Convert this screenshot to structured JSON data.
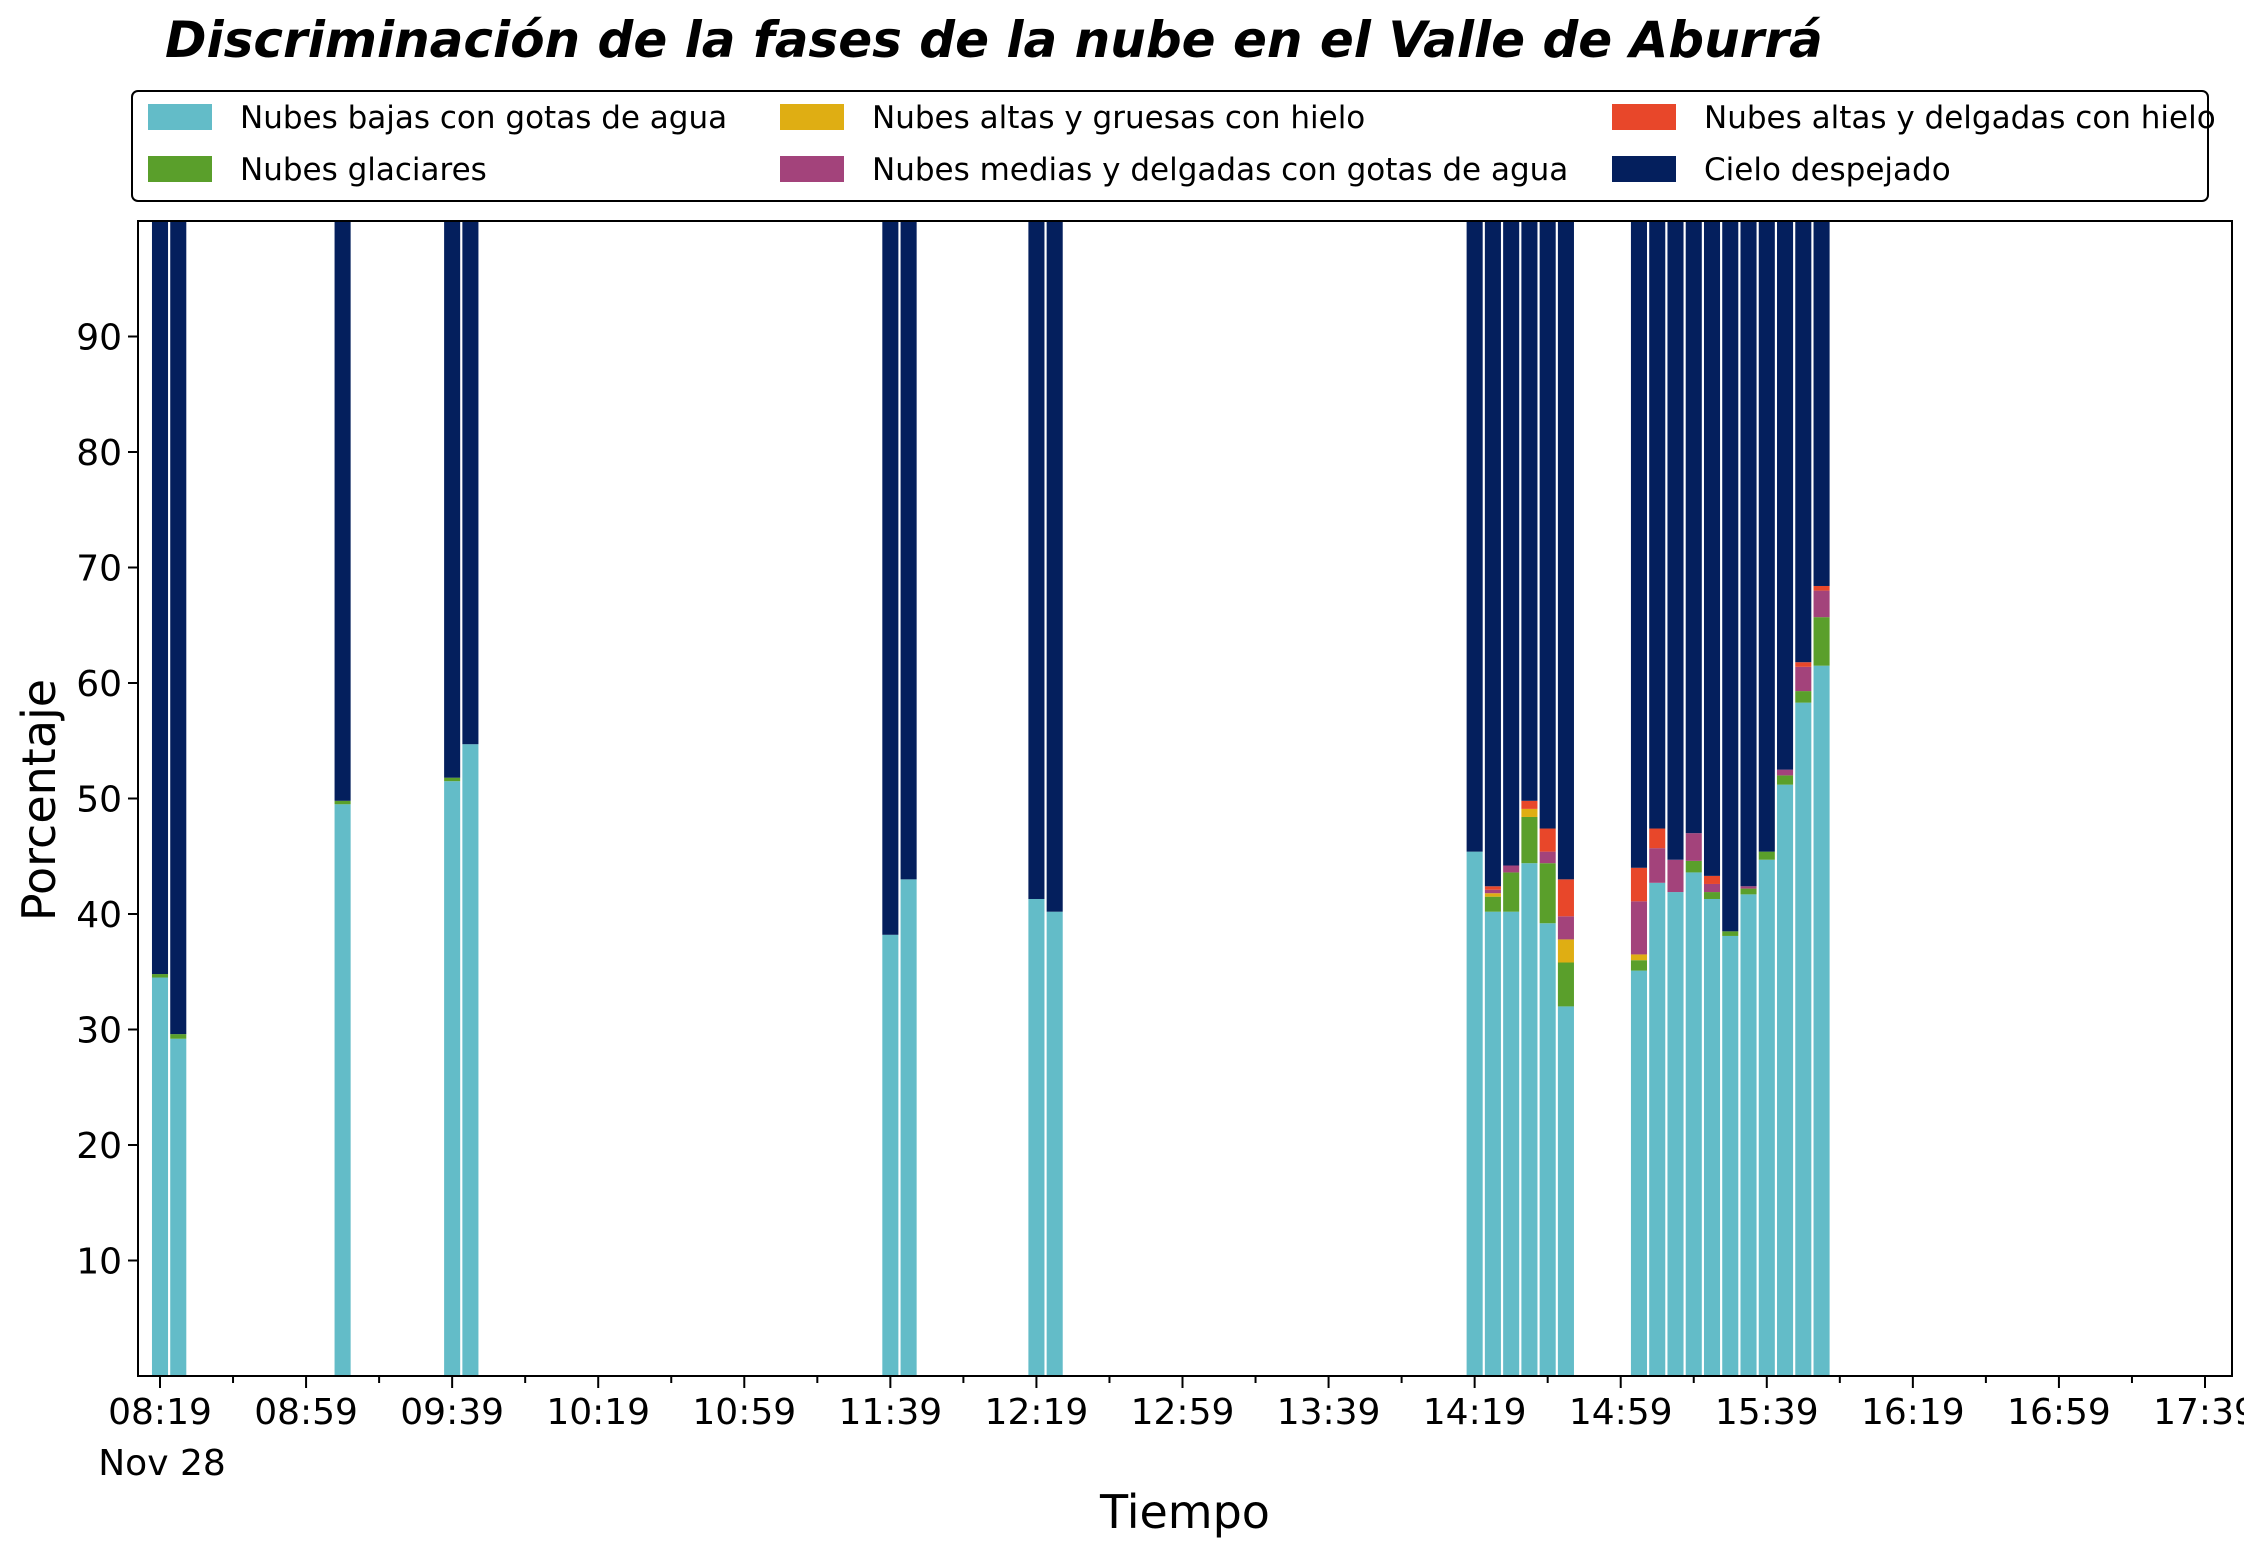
{
  "chart_data": {
    "type": "bar",
    "stacked": true,
    "title": "Discriminación de la fases de la nube en el Valle de Aburrá",
    "xlabel": "Tiempo",
    "ylabel": "Porcentaje",
    "ylim": [
      0,
      100
    ],
    "yticks": [
      10,
      20,
      30,
      40,
      50,
      60,
      70,
      80,
      90
    ],
    "x_major_ticks": [
      "08:19",
      "08:59",
      "09:39",
      "10:19",
      "10:59",
      "11:39",
      "12:19",
      "12:59",
      "13:39",
      "14:19",
      "14:59",
      "15:39",
      "16:19",
      "16:59",
      "17:39"
    ],
    "x_date_label": "Nov 28",
    "grid": false,
    "legend": {
      "placement": "top",
      "columns": 3
    },
    "x": [
      "08:19",
      "08:24",
      "08:44",
      "08:49",
      "08:54",
      "08:59",
      "09:04",
      "09:09",
      "09:14",
      "09:19",
      "09:24",
      "09:29",
      "09:34",
      "09:39",
      "09:44",
      "09:49",
      "09:54",
      "09:59",
      "10:04",
      "10:09",
      "10:14",
      "10:19",
      "10:24",
      "10:29",
      "10:34",
      "10:39",
      "10:44",
      "10:49",
      "10:54",
      "10:59",
      "11:04",
      "11:09",
      "11:14",
      "11:19",
      "11:24",
      "11:29",
      "11:34",
      "11:39",
      "11:44",
      "11:49",
      "11:54",
      "11:59",
      "12:04",
      "12:09",
      "12:14",
      "12:19",
      "12:24",
      "12:29",
      "12:34",
      "12:39",
      "12:44",
      "12:49",
      "12:54",
      "12:59",
      "13:04",
      "13:09",
      "13:14",
      "13:19",
      "13:24",
      "13:29",
      "13:34",
      "13:39",
      "13:44",
      "13:49",
      "13:54",
      "13:59",
      "14:04",
      "14:09",
      "14:14",
      "14:19",
      "14:24",
      "14:29",
      "14:34",
      "14:39",
      "14:44",
      "14:49",
      "14:54",
      "14:59",
      "15:04",
      "15:09",
      "15:14",
      "15:19",
      "15:24",
      "15:29",
      "15:34",
      "15:39",
      "15:44",
      "15:49",
      "15:54",
      "15:59",
      "16:04",
      "16:09",
      "16:14",
      "16:19",
      "16:24",
      "16:29",
      "16:34",
      "16:39",
      "16:44",
      "16:49",
      "16:54",
      "16:59",
      "17:04",
      "17:09",
      "17:14",
      "17:19",
      "17:24",
      "17:29",
      "17:34",
      "17:39"
    ],
    "bars": [
      {
        "t": "08:19",
        "v": [
          34.5,
          0.3,
          0,
          0,
          0,
          65.2
        ]
      },
      {
        "t": "08:24",
        "v": [
          29.2,
          0.4,
          0,
          0,
          0,
          70.4
        ]
      },
      {
        "t": "09:09",
        "v": [
          49.5,
          0.3,
          0,
          0,
          0,
          50.2
        ]
      },
      {
        "t": "09:39",
        "v": [
          51.5,
          0.3,
          0,
          0,
          0,
          48.2
        ]
      },
      {
        "t": "09:44",
        "v": [
          54.7,
          0,
          0,
          0,
          0,
          45.3
        ]
      },
      {
        "t": "11:39",
        "v": [
          38.2,
          0,
          0,
          0,
          0,
          61.8
        ]
      },
      {
        "t": "11:44",
        "v": [
          43.0,
          0,
          0,
          0,
          0,
          57.0
        ]
      },
      {
        "t": "12:19",
        "v": [
          41.3,
          0,
          0,
          0,
          0,
          58.7
        ]
      },
      {
        "t": "12:24",
        "v": [
          40.2,
          0,
          0,
          0,
          0,
          59.8
        ]
      },
      {
        "t": "14:19",
        "v": [
          45.4,
          0,
          0,
          0,
          0,
          54.6
        ]
      },
      {
        "t": "14:24",
        "v": [
          40.2,
          1.3,
          0.3,
          0.3,
          0.3,
          57.6
        ]
      },
      {
        "t": "14:29",
        "v": [
          40.2,
          3.4,
          0,
          0.6,
          0,
          55.8
        ]
      },
      {
        "t": "14:34",
        "v": [
          44.4,
          4.0,
          0.7,
          0,
          0.7,
          50.2
        ]
      },
      {
        "t": "14:39",
        "v": [
          39.2,
          5.2,
          0,
          1.0,
          2.0,
          52.6
        ]
      },
      {
        "t": "14:44",
        "v": [
          32.0,
          3.8,
          2.0,
          2.0,
          3.2,
          57.0
        ]
      },
      {
        "t": "15:04",
        "v": [
          35.1,
          0.9,
          0.5,
          4.6,
          2.9,
          56.0
        ]
      },
      {
        "t": "15:09",
        "v": [
          42.7,
          0,
          0,
          3.0,
          1.7,
          52.6
        ]
      },
      {
        "t": "15:14",
        "v": [
          41.9,
          0,
          0,
          2.8,
          0,
          55.3
        ]
      },
      {
        "t": "15:19",
        "v": [
          43.6,
          1.0,
          0,
          2.4,
          0,
          53.0
        ]
      },
      {
        "t": "15:24",
        "v": [
          41.3,
          0.6,
          0,
          0.7,
          0.7,
          56.7
        ]
      },
      {
        "t": "15:29",
        "v": [
          38.1,
          0.4,
          0,
          0,
          0,
          61.5
        ]
      },
      {
        "t": "15:34",
        "v": [
          41.7,
          0.5,
          0,
          0.2,
          0,
          57.6
        ]
      },
      {
        "t": "15:39",
        "v": [
          44.7,
          0.7,
          0,
          0,
          0,
          54.6
        ]
      },
      {
        "t": "15:44",
        "v": [
          51.2,
          0.8,
          0,
          0.5,
          0,
          47.5
        ]
      },
      {
        "t": "15:49",
        "v": [
          58.3,
          1.0,
          0,
          2.1,
          0.4,
          38.2
        ]
      },
      {
        "t": "15:54",
        "v": [
          61.5,
          4.2,
          0,
          2.3,
          0.4,
          31.6
        ]
      }
    ],
    "series": [
      {
        "name": "Nubes bajas con gotas de agua",
        "color": "#63bcc8"
      },
      {
        "name": "Nubes glaciares",
        "color": "#5a9f2b"
      },
      {
        "name": "Nubes altas y gruesas con hielo",
        "color": "#dfae13"
      },
      {
        "name": "Nubes medias y delgadas con gotas de agua",
        "color": "#a3437b"
      },
      {
        "name": "Nubes altas y delgadas con hielo",
        "color": "#e8472a"
      },
      {
        "name": "Cielo despejado",
        "color": "#041f5d"
      }
    ]
  }
}
